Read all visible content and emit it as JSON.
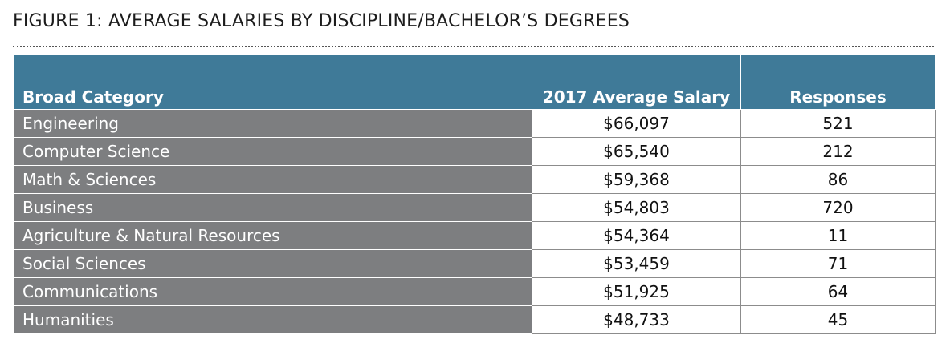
{
  "figure": {
    "title": "FIGURE 1: AVERAGE SALARIES BY DISCIPLINE/BACHELOR’S DEGREES"
  },
  "table": {
    "headers": {
      "category": "Broad Category",
      "salary": "2017 Average Salary",
      "responses": "Responses"
    },
    "rows": [
      {
        "category": "Engineering",
        "salary": "$66,097",
        "responses": "521"
      },
      {
        "category": "Computer Science",
        "salary": "$65,540",
        "responses": "212"
      },
      {
        "category": "Math & Sciences",
        "salary": "$59,368",
        "responses": "86"
      },
      {
        "category": "Business",
        "salary": "$54,803",
        "responses": "720"
      },
      {
        "category": "Agriculture & Natural Resources",
        "salary": "$54,364",
        "responses": "11"
      },
      {
        "category": "Social Sciences",
        "salary": "$53,459",
        "responses": "71"
      },
      {
        "category": "Communications",
        "salary": "$51,925",
        "responses": "64"
      },
      {
        "category": "Humanities",
        "salary": "$48,733",
        "responses": "45"
      }
    ]
  },
  "colors": {
    "header_background": "#3f7a98",
    "category_background": "#7d7e80",
    "text_dark": "#111111",
    "text_light": "#ffffff"
  }
}
